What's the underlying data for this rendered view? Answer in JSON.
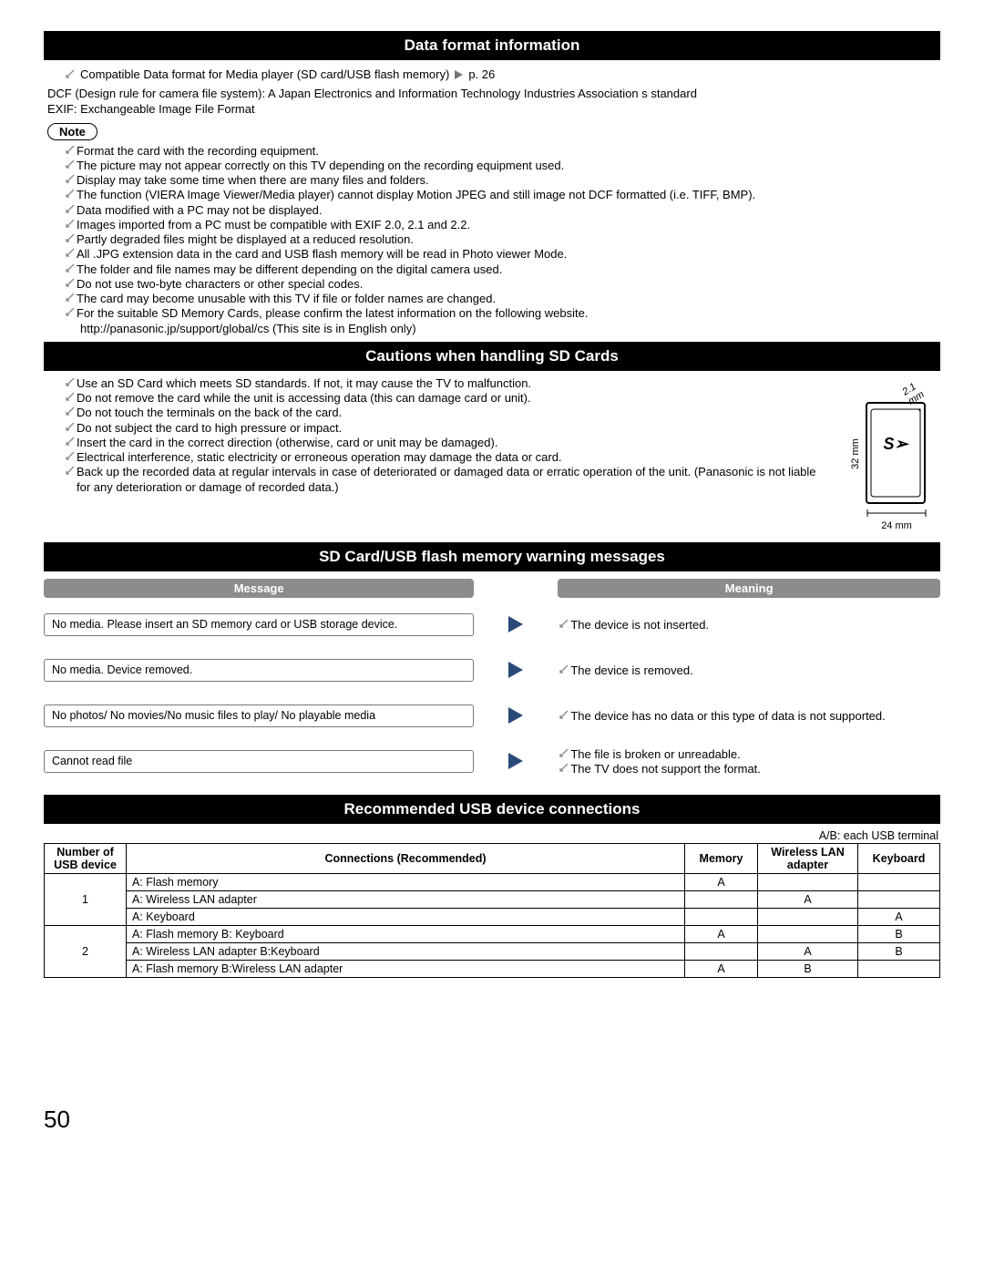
{
  "section1": {
    "title": "Data format information",
    "intro_line1_pre": "Compatible Data format for Media player (SD card/USB flash memory)",
    "intro_line1_post": "p. 26",
    "intro_line2": "DCF (Design rule for camera file system): A Japan Electronics and Information Technology Industries Association s standard",
    "intro_line3": "EXIF: Exchangeable Image File Format",
    "note_label": "Note",
    "notes": [
      "Format the card with the recording equipment.",
      "The picture may not appear correctly on this TV depending on the recording equipment used.",
      "Display may take some time when there are many files and folders.",
      "The function (VIERA Image Viewer/Media player) cannot display Motion JPEG and still image not DCF formatted (i.e. TIFF, BMP).",
      "Data modified with a PC may not be displayed.",
      "Images imported from a PC must be compatible with EXIF 2.0, 2.1 and 2.2.",
      "Partly degraded files might be displayed at a reduced resolution.",
      "All  .JPG  extension data in the card and USB flash memory will be read in Photo viewer Mode.",
      "The folder and file names may be different depending on the digital camera used.",
      "Do not use two-byte characters or other special codes.",
      "The card may become unusable with this TV if file or folder names are changed.",
      "For the suitable SD Memory Cards, please confirm the latest information on the following website."
    ],
    "note_subline": "http://panasonic.jp/support/global/cs (This site is in English only)"
  },
  "section2": {
    "title": "Cautions when handling SD Cards",
    "items": [
      "Use an SD Card which meets SD standards. If not, it may cause the TV to malfunction.",
      "Do not remove the card while the unit is accessing data (this can damage card or unit).",
      "Do not touch the terminals on the back of the card.",
      "Do not subject the card to high pressure or impact.",
      "Insert the card in the correct direction (otherwise, card or unit may be damaged).",
      "Electrical interference, static electricity or erroneous operation may damage the data or card.",
      "Back up the recorded data at regular intervals in case of deteriorated or damaged data or erratic operation of the unit. (Panasonic is not liable for any deterioration or damage of recorded data.)"
    ],
    "dim_top": "2.1 mm",
    "dim_left": "32 mm",
    "dim_bottom": "24 mm"
  },
  "section3": {
    "title": "SD Card/USB flash memory warning messages",
    "col_message": "Message",
    "col_meaning": "Meaning",
    "rows": [
      {
        "msg": "No media. Please insert an SD memory card or USB storage device.",
        "mean": [
          "The device is not inserted."
        ]
      },
      {
        "msg": "No media. Device removed.",
        "mean": [
          "The device is removed."
        ]
      },
      {
        "msg": "No photos/ No movies/No music files to play/ No playable media",
        "mean": [
          "The device has no data or this type of data is not supported."
        ]
      },
      {
        "msg": "Cannot read file",
        "mean": [
          "The file is broken or unreadable.",
          "The TV does not support the format."
        ]
      }
    ]
  },
  "section4": {
    "title": "Recommended USB device connections",
    "ab_note": "A/B: each USB terminal",
    "headers": {
      "num": "Number of USB device",
      "conn": "Connections (Recommended)",
      "mem": "Memory",
      "wlan": "Wireless LAN adapter",
      "kbd": "Keyboard"
    },
    "rows": [
      {
        "num": "1",
        "span": 3,
        "conn": "A: Flash memory",
        "mem": "A",
        "wlan": "",
        "kbd": ""
      },
      {
        "conn": "A: Wireless LAN adapter",
        "mem": "",
        "wlan": "A",
        "kbd": ""
      },
      {
        "conn": "A: Keyboard",
        "mem": "",
        "wlan": "",
        "kbd": "A"
      },
      {
        "num": "2",
        "span": 3,
        "conn": "A: Flash memory  B: Keyboard",
        "mem": "A",
        "wlan": "",
        "kbd": "B"
      },
      {
        "conn": "A: Wireless LAN adapter  B:Keyboard",
        "mem": "",
        "wlan": "A",
        "kbd": "B"
      },
      {
        "conn": "A: Flash memory  B:Wireless LAN adapter",
        "mem": "A",
        "wlan": "B",
        "kbd": ""
      }
    ]
  },
  "page_number": "50"
}
